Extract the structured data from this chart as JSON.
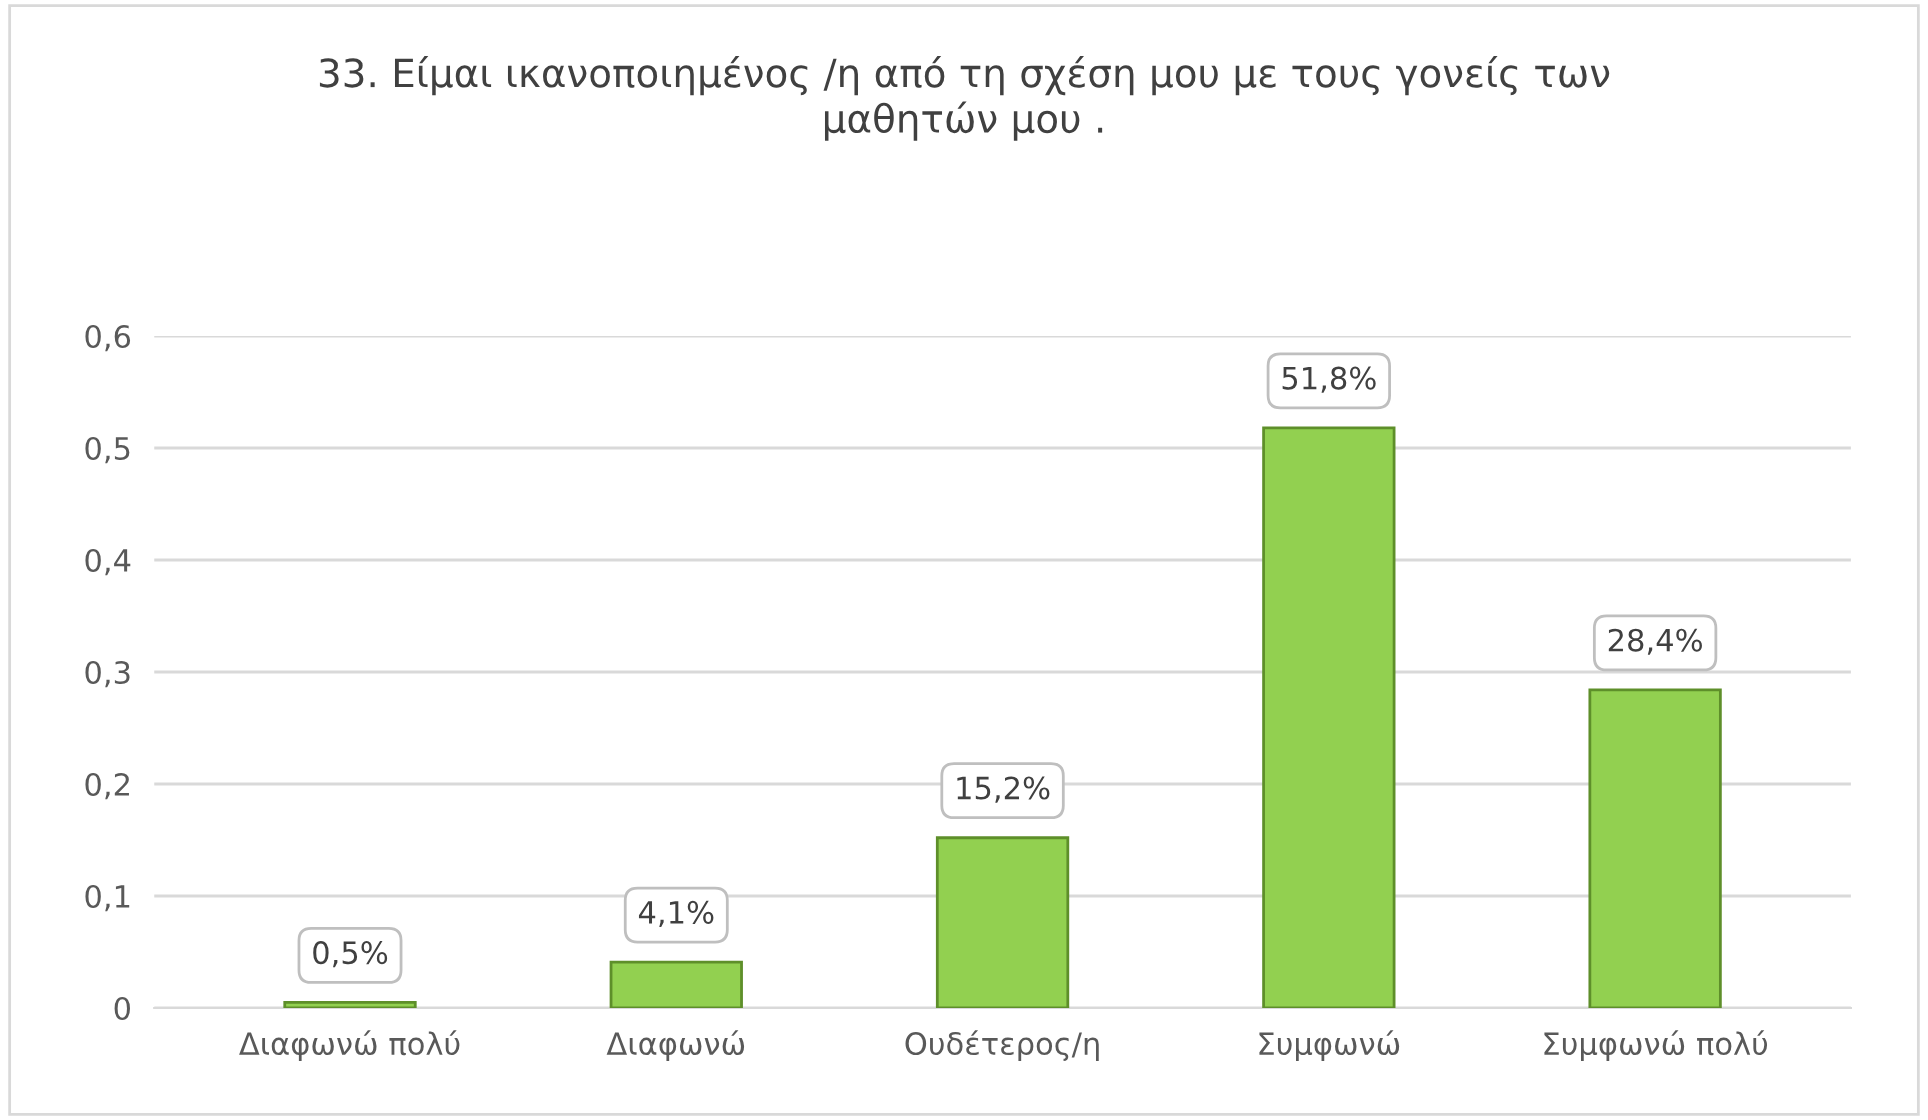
{
  "chart_data": {
    "type": "bar",
    "title": "33. Είμαι ικανοποιημένος /η από τη σχέση μου με τους γονείς των\nμαθητών μου .",
    "categories": [
      "Διαφωνώ πολύ",
      "Διαφωνώ",
      "Ουδέτερος/η",
      "Συμφωνώ",
      "Συμφωνώ πολύ"
    ],
    "values": [
      0.005,
      0.041,
      0.152,
      0.518,
      0.284
    ],
    "color": "#92d050",
    "value_labels": [
      "0,5%",
      "4,1%",
      "15,2%",
      "51,8%",
      "28,4%"
    ],
    "ylim": [
      0,
      0.6
    ],
    "yticks": [
      0,
      {
        "value": 0.1,
        "label": "0,1"
      },
      {
        "value": 0.2,
        "label": "0,2"
      },
      {
        "value": 0.3,
        "label": "0,3"
      },
      {
        "value": 0.4,
        "label": "0,4"
      },
      {
        "value": 0.5,
        "label": "0,5"
      },
      {
        "value": 0.6,
        "label": "0,6"
      }
    ],
    "grid": "y"
  }
}
